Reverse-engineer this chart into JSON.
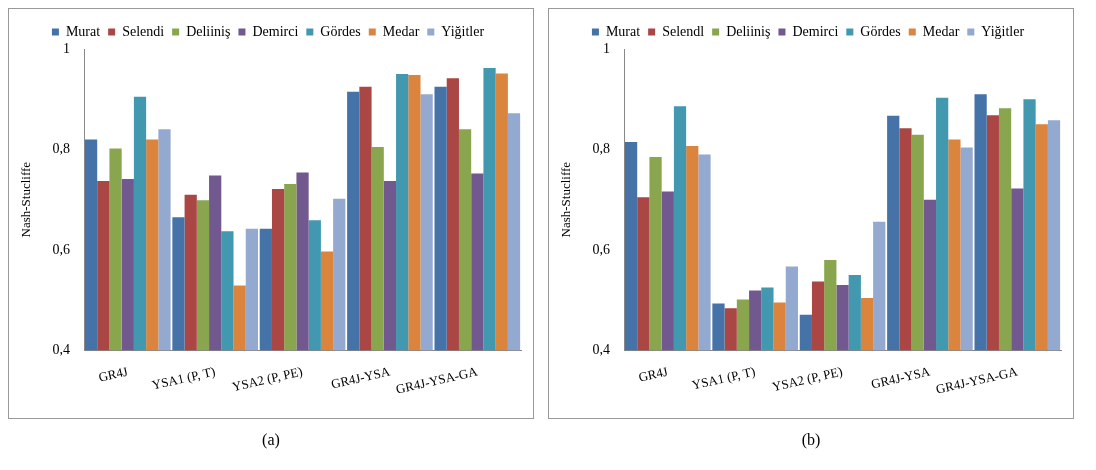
{
  "chart_data": [
    {
      "type": "bar",
      "ylabel": "Nash-Stucliffe",
      "categories": [
        "GR4J",
        "YSA1 (P, T)",
        "YSA2 (P, PE)",
        "GR4J-YSA",
        "GR4J-YSA-GA"
      ],
      "ylim": [
        0.4,
        1
      ],
      "yticks": [
        {
          "value": 0.4,
          "label": "0,4"
        },
        {
          "value": 0.6,
          "label": "0,6"
        },
        {
          "value": 0.8,
          "label": "0,8"
        },
        {
          "value": 1,
          "label": "1"
        }
      ],
      "grid": false,
      "legend": "top",
      "annotations": [
        "(a)"
      ],
      "series": [
        {
          "name": "Murat",
          "color": "#4572a7",
          "values": [
            0.82,
            0.665,
            0.642,
            0.915,
            0.925
          ]
        },
        {
          "name": "Selendi",
          "color": "#aa4643",
          "values": [
            0.737,
            0.71,
            0.721,
            0.925,
            0.942
          ]
        },
        {
          "name": "Deliiniş",
          "color": "#89a54e",
          "values": [
            0.802,
            0.699,
            0.731,
            0.805,
            0.84
          ]
        },
        {
          "name": "Demirci",
          "color": "#71588f",
          "values": [
            0.741,
            0.748,
            0.754,
            0.737,
            0.752
          ]
        },
        {
          "name": "Gördes",
          "color": "#4198af",
          "values": [
            0.905,
            0.637,
            0.659,
            0.95,
            0.962
          ]
        },
        {
          "name": "Medar",
          "color": "#db843d",
          "values": [
            0.82,
            0.529,
            0.597,
            0.948,
            0.951
          ]
        },
        {
          "name": "Yiğitler",
          "color": "#93a9cf",
          "values": [
            0.84,
            0.642,
            0.702,
            0.91,
            0.872
          ]
        }
      ]
    },
    {
      "type": "bar",
      "ylabel": "Nash-Stucliffe",
      "categories": [
        "GR4J",
        "YSA1 (P, T)",
        "YSA2 (P, PE)",
        "GR4J-YSA",
        "GR4J-YSA-GA"
      ],
      "ylim": [
        0.4,
        1
      ],
      "yticks": [
        {
          "value": 0.4,
          "label": "0,4"
        },
        {
          "value": 0.6,
          "label": "0,6"
        },
        {
          "value": 0.8,
          "label": "0,8"
        },
        {
          "value": 1,
          "label": "1"
        }
      ],
      "grid": false,
      "legend": "top",
      "annotations": [
        "(b)"
      ],
      "series": [
        {
          "name": "Murat",
          "color": "#4572a7",
          "values": [
            0.815,
            0.493,
            0.471,
            0.867,
            0.91
          ]
        },
        {
          "name": "Selendl",
          "color": "#aa4643",
          "values": [
            0.705,
            0.484,
            0.537,
            0.842,
            0.868
          ]
        },
        {
          "name": "Deliiniş",
          "color": "#89a54e",
          "values": [
            0.785,
            0.501,
            0.58,
            0.829,
            0.882
          ]
        },
        {
          "name": "Demirci",
          "color": "#71588f",
          "values": [
            0.716,
            0.519,
            0.53,
            0.7,
            0.722
          ]
        },
        {
          "name": "Gördes",
          "color": "#4198af",
          "values": [
            0.886,
            0.525,
            0.55,
            0.903,
            0.9
          ]
        },
        {
          "name": "Medar",
          "color": "#db843d",
          "values": [
            0.807,
            0.495,
            0.504,
            0.82,
            0.85
          ]
        },
        {
          "name": "Yiğitler",
          "color": "#93a9cf",
          "values": [
            0.79,
            0.567,
            0.656,
            0.804,
            0.858
          ]
        }
      ]
    }
  ]
}
